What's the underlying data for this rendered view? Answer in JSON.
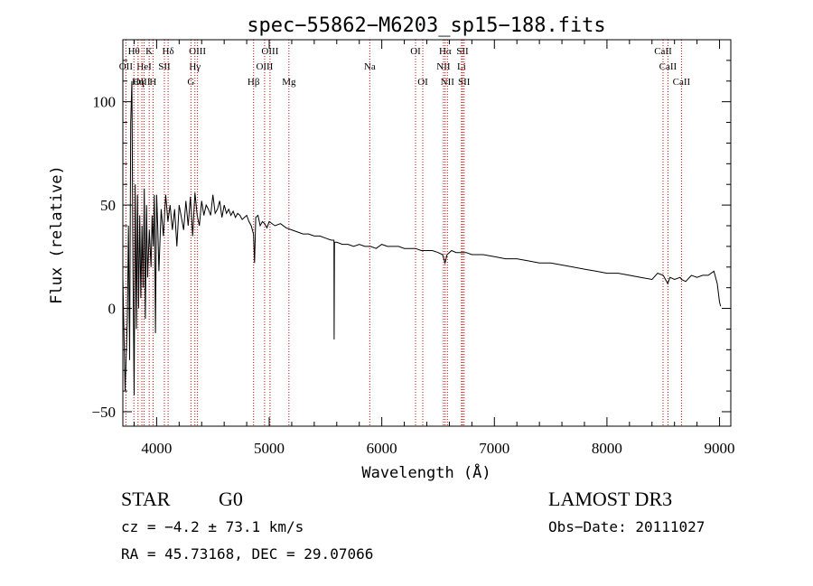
{
  "chart_data": {
    "type": "line",
    "title": "spec−55862−M6203_sp15−188.fits",
    "xlabel": "Wavelength (Å)",
    "ylabel": "Flux (relative)",
    "xlim": [
      3700,
      9100
    ],
    "ylim": [
      -57,
      130
    ],
    "x_ticks": [
      4000,
      5000,
      6000,
      7000,
      8000,
      9000
    ],
    "x_tick_labels": [
      "4000",
      "5000",
      "6000",
      "7000",
      "8000",
      "9000"
    ],
    "y_ticks": [
      -50,
      0,
      50,
      100
    ],
    "y_tick_labels": [
      "−50",
      "0",
      "50",
      "100"
    ],
    "grid": false,
    "series": [
      {
        "name": "flux",
        "x": [
          3700,
          3720,
          3740,
          3750,
          3760,
          3770,
          3780,
          3790,
          3800,
          3810,
          3820,
          3830,
          3840,
          3850,
          3860,
          3870,
          3880,
          3890,
          3900,
          3910,
          3920,
          3935,
          3950,
          3960,
          3970,
          3980,
          3990,
          4000,
          4010,
          4020,
          4040,
          4060,
          4080,
          4100,
          4120,
          4140,
          4160,
          4180,
          4200,
          4220,
          4240,
          4260,
          4280,
          4300,
          4320,
          4340,
          4360,
          4380,
          4400,
          4420,
          4440,
          4460,
          4480,
          4500,
          4520,
          4540,
          4560,
          4580,
          4600,
          4620,
          4640,
          4660,
          4680,
          4700,
          4720,
          4740,
          4760,
          4780,
          4800,
          4820,
          4840,
          4860,
          4870,
          4880,
          4900,
          4920,
          4940,
          4960,
          4980,
          5000,
          5050,
          5100,
          5150,
          5200,
          5250,
          5300,
          5350,
          5400,
          5450,
          5500,
          5550,
          5575,
          5577,
          5580,
          5600,
          5650,
          5700,
          5750,
          5800,
          5850,
          5900,
          5950,
          6000,
          6050,
          6100,
          6150,
          6200,
          6250,
          6300,
          6350,
          6400,
          6450,
          6500,
          6540,
          6562,
          6580,
          6620,
          6660,
          6700,
          6750,
          6800,
          6900,
          7000,
          7100,
          7200,
          7300,
          7400,
          7500,
          7600,
          7700,
          7800,
          7900,
          8000,
          8100,
          8200,
          8300,
          8400,
          8450,
          8500,
          8540,
          8560,
          8600,
          8650,
          8662,
          8700,
          8750,
          8800,
          8850,
          8900,
          8950,
          8980,
          9000,
          9010
        ],
        "y": [
          15,
          -40,
          -5,
          40,
          -25,
          90,
          110,
          20,
          -42,
          60,
          -10,
          55,
          0,
          45,
          5,
          40,
          10,
          58,
          -5,
          50,
          15,
          38,
          20,
          45,
          30,
          55,
          -12,
          55,
          40,
          18,
          48,
          35,
          55,
          42,
          50,
          38,
          48,
          30,
          50,
          44,
          38,
          52,
          40,
          54,
          35,
          56,
          45,
          40,
          52,
          45,
          50,
          48,
          45,
          55,
          46,
          48,
          52,
          44,
          50,
          46,
          48,
          45,
          47,
          44,
          46,
          45,
          43,
          44,
          45,
          42,
          40,
          36,
          22,
          44,
          45,
          40,
          42,
          41,
          39,
          42,
          40,
          41,
          39,
          38,
          37,
          36,
          36,
          35,
          35,
          34,
          33,
          33,
          -15,
          32,
          32,
          31,
          31,
          30,
          31,
          30,
          30,
          29,
          31,
          30,
          30,
          30,
          29,
          29,
          29,
          28,
          28,
          28,
          27,
          26,
          22,
          26,
          28,
          27,
          27,
          27,
          26,
          26,
          25,
          24,
          24,
          23,
          22,
          22,
          21,
          20,
          19,
          18,
          17,
          17,
          16,
          15,
          14,
          17,
          16,
          12,
          15,
          14,
          15,
          14,
          13,
          16,
          15,
          16,
          16,
          18,
          12,
          3,
          1
        ]
      }
    ],
    "line_markers": [
      {
        "label": "Hθ",
        "wavelength": 3798,
        "row": 0
      },
      {
        "label": "K",
        "wavelength": 3934,
        "row": 0
      },
      {
        "label": "Hδ",
        "wavelength": 4102,
        "row": 0
      },
      {
        "label": "OIII",
        "wavelength": 4363,
        "row": 0
      },
      {
        "label": "OIII",
        "wavelength": 5007,
        "row": 0
      },
      {
        "label": "OI",
        "wavelength": 6300,
        "row": 0
      },
      {
        "label": "Hα",
        "wavelength": 6563,
        "row": 0
      },
      {
        "label": "SII",
        "wavelength": 6717,
        "row": 0
      },
      {
        "label": "CaII",
        "wavelength": 8498,
        "row": 0
      },
      {
        "label": "OII",
        "wavelength": 3727,
        "row": 1
      },
      {
        "label": "HeI",
        "wavelength": 3889,
        "row": 1
      },
      {
        "label": "SII",
        "wavelength": 4069,
        "row": 1
      },
      {
        "label": "Hγ",
        "wavelength": 4340,
        "row": 1
      },
      {
        "label": "OIII",
        "wavelength": 4959,
        "row": 1
      },
      {
        "label": "Na",
        "wavelength": 5893,
        "row": 1
      },
      {
        "label": "NII",
        "wavelength": 6548,
        "row": 1
      },
      {
        "label": "Li",
        "wavelength": 6708,
        "row": 1
      },
      {
        "label": "CaII",
        "wavelength": 8542,
        "row": 1
      },
      {
        "label": "OIII",
        "wavelength": 3869,
        "row": 2
      },
      {
        "label": "Hη",
        "wavelength": 3835,
        "row": 2
      },
      {
        "label": "H",
        "wavelength": 3968,
        "row": 2
      },
      {
        "label": "G",
        "wavelength": 4305,
        "row": 2
      },
      {
        "label": "Hβ",
        "wavelength": 4861,
        "row": 2
      },
      {
        "label": "Mg",
        "wavelength": 5175,
        "row": 2
      },
      {
        "label": "OI",
        "wavelength": 6364,
        "row": 2
      },
      {
        "label": "NII",
        "wavelength": 6583,
        "row": 2
      },
      {
        "label": "SII",
        "wavelength": 6731,
        "row": 2
      },
      {
        "label": "CaII",
        "wavelength": 8662,
        "row": 2
      }
    ]
  },
  "info": {
    "object_class": "STAR",
    "subclass": "G0",
    "survey": "LAMOST DR3",
    "redshift": "cz = −4.2 ± 73.1 km/s",
    "obs_date": "Obs−Date: 20111027",
    "coords": "RA =  45.73168, DEC =  29.07066"
  },
  "colors": {
    "line": "#000000",
    "marker": "#cc0000",
    "background": "#ffffff"
  }
}
